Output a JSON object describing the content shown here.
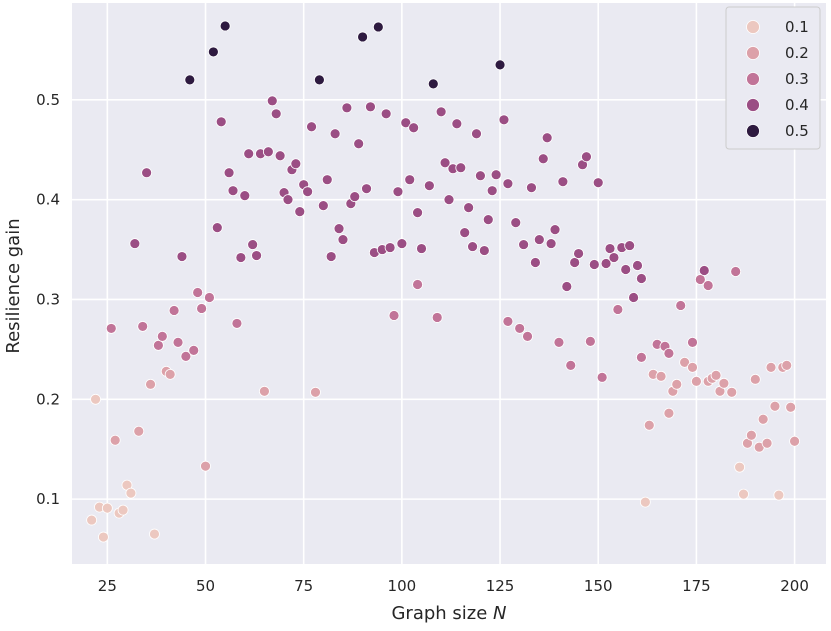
{
  "chart_data": {
    "type": "scatter",
    "xlabel": "Graph size",
    "xlabel_var": "N",
    "ylabel": "Resilience gain",
    "xlim": [
      16,
      208
    ],
    "ylim": [
      0.035,
      0.597
    ],
    "xticks": [
      25,
      50,
      75,
      100,
      125,
      150,
      175,
      200
    ],
    "yticks": [
      0.1,
      0.2,
      0.3,
      0.4,
      0.5
    ],
    "grid": true,
    "legend_position": "top-right",
    "background": "#eaeaf2",
    "series": [
      {
        "name": "0.1",
        "color": "#ecc8c0",
        "points": [
          [
            21,
            0.079
          ],
          [
            22,
            0.2
          ],
          [
            23,
            0.092
          ],
          [
            24,
            0.062
          ],
          [
            25,
            0.091
          ],
          [
            28,
            0.086
          ],
          [
            29,
            0.089
          ],
          [
            30,
            0.114
          ],
          [
            31,
            0.106
          ],
          [
            37,
            0.065
          ],
          [
            162,
            0.097
          ],
          [
            186,
            0.132
          ],
          [
            187,
            0.105
          ],
          [
            196,
            0.104
          ]
        ]
      },
      {
        "name": "0.2",
        "color": "#dca1a9",
        "points": [
          [
            27,
            0.159
          ],
          [
            33,
            0.168
          ],
          [
            36,
            0.215
          ],
          [
            40,
            0.228
          ],
          [
            41,
            0.225
          ],
          [
            50,
            0.133
          ],
          [
            65,
            0.208
          ],
          [
            78,
            0.207
          ],
          [
            163,
            0.174
          ],
          [
            164,
            0.225
          ],
          [
            166,
            0.223
          ],
          [
            168,
            0.186
          ],
          [
            169,
            0.208
          ],
          [
            170,
            0.215
          ],
          [
            172,
            0.237
          ],
          [
            174,
            0.232
          ],
          [
            175,
            0.218
          ],
          [
            178,
            0.218
          ],
          [
            179,
            0.221
          ],
          [
            180,
            0.224
          ],
          [
            181,
            0.208
          ],
          [
            182,
            0.216
          ],
          [
            184,
            0.207
          ],
          [
            188,
            0.156
          ],
          [
            189,
            0.164
          ],
          [
            190,
            0.22
          ],
          [
            191,
            0.152
          ],
          [
            192,
            0.18
          ],
          [
            193,
            0.156
          ],
          [
            194,
            0.232
          ],
          [
            195,
            0.193
          ],
          [
            197,
            0.232
          ],
          [
            198,
            0.234
          ],
          [
            199,
            0.192
          ],
          [
            200,
            0.158
          ]
        ]
      },
      {
        "name": "0.3",
        "color": "#c17498",
        "points": [
          [
            26,
            0.271
          ],
          [
            34,
            0.273
          ],
          [
            38,
            0.254
          ],
          [
            39,
            0.263
          ],
          [
            42,
            0.289
          ],
          [
            43,
            0.257
          ],
          [
            45,
            0.243
          ],
          [
            47,
            0.249
          ],
          [
            48,
            0.307
          ],
          [
            49,
            0.291
          ],
          [
            51,
            0.302
          ],
          [
            58,
            0.276
          ],
          [
            98,
            0.284
          ],
          [
            104,
            0.315
          ],
          [
            109,
            0.282
          ],
          [
            127,
            0.278
          ],
          [
            130,
            0.271
          ],
          [
            132,
            0.263
          ],
          [
            140,
            0.257
          ],
          [
            143,
            0.234
          ],
          [
            148,
            0.258
          ],
          [
            151,
            0.222
          ],
          [
            161,
            0.242
          ],
          [
            165,
            0.255
          ],
          [
            167,
            0.253
          ],
          [
            168,
            0.246
          ],
          [
            171,
            0.294
          ],
          [
            174,
            0.257
          ],
          [
            176,
            0.32
          ],
          [
            178,
            0.314
          ],
          [
            185,
            0.328
          ],
          [
            155,
            0.29
          ]
        ]
      },
      {
        "name": "0.4",
        "color": "#9b4e84",
        "points": [
          [
            32,
            0.356
          ],
          [
            35,
            0.427
          ],
          [
            44,
            0.343
          ],
          [
            53,
            0.372
          ],
          [
            54,
            0.478
          ],
          [
            56,
            0.427
          ],
          [
            57,
            0.409
          ],
          [
            59,
            0.342
          ],
          [
            60,
            0.404
          ],
          [
            61,
            0.446
          ],
          [
            62,
            0.355
          ],
          [
            63,
            0.344
          ],
          [
            64,
            0.446
          ],
          [
            66,
            0.448
          ],
          [
            67,
            0.499
          ],
          [
            68,
            0.486
          ],
          [
            69,
            0.444
          ],
          [
            70,
            0.407
          ],
          [
            71,
            0.4
          ],
          [
            72,
            0.43
          ],
          [
            73,
            0.436
          ],
          [
            74,
            0.388
          ],
          [
            75,
            0.415
          ],
          [
            76,
            0.408
          ],
          [
            77,
            0.473
          ],
          [
            80,
            0.394
          ],
          [
            81,
            0.42
          ],
          [
            82,
            0.343
          ],
          [
            83,
            0.466
          ],
          [
            84,
            0.371
          ],
          [
            85,
            0.36
          ],
          [
            86,
            0.492
          ],
          [
            87,
            0.396
          ],
          [
            88,
            0.403
          ],
          [
            89,
            0.456
          ],
          [
            91,
            0.411
          ],
          [
            92,
            0.493
          ],
          [
            93,
            0.347
          ],
          [
            95,
            0.35
          ],
          [
            96,
            0.486
          ],
          [
            97,
            0.352
          ],
          [
            99,
            0.408
          ],
          [
            100,
            0.356
          ],
          [
            101,
            0.477
          ],
          [
            102,
            0.42
          ],
          [
            103,
            0.472
          ],
          [
            104,
            0.387
          ],
          [
            105,
            0.351
          ],
          [
            107,
            0.414
          ],
          [
            110,
            0.488
          ],
          [
            111,
            0.437
          ],
          [
            112,
            0.4
          ],
          [
            113,
            0.431
          ],
          [
            114,
            0.476
          ],
          [
            115,
            0.432
          ],
          [
            116,
            0.367
          ],
          [
            117,
            0.392
          ],
          [
            118,
            0.353
          ],
          [
            119,
            0.466
          ],
          [
            120,
            0.424
          ],
          [
            121,
            0.349
          ],
          [
            122,
            0.38
          ],
          [
            123,
            0.409
          ],
          [
            124,
            0.425
          ],
          [
            126,
            0.48
          ],
          [
            127,
            0.416
          ],
          [
            129,
            0.377
          ],
          [
            131,
            0.355
          ],
          [
            133,
            0.412
          ],
          [
            134,
            0.337
          ],
          [
            135,
            0.36
          ],
          [
            136,
            0.441
          ],
          [
            137,
            0.462
          ],
          [
            138,
            0.356
          ],
          [
            139,
            0.37
          ],
          [
            141,
            0.418
          ],
          [
            142,
            0.313
          ],
          [
            144,
            0.337
          ],
          [
            145,
            0.346
          ],
          [
            146,
            0.435
          ],
          [
            147,
            0.443
          ],
          [
            149,
            0.335
          ],
          [
            150,
            0.417
          ],
          [
            152,
            0.336
          ],
          [
            153,
            0.351
          ],
          [
            154,
            0.342
          ],
          [
            156,
            0.352
          ],
          [
            157,
            0.33
          ],
          [
            158,
            0.354
          ],
          [
            159,
            0.302
          ],
          [
            160,
            0.334
          ],
          [
            161,
            0.321
          ],
          [
            177,
            0.329
          ]
        ]
      },
      {
        "name": "0.5",
        "color": "#2e1a40",
        "points": [
          [
            46,
            0.52
          ],
          [
            52,
            0.548
          ],
          [
            55,
            0.574
          ],
          [
            79,
            0.52
          ],
          [
            90,
            0.563
          ],
          [
            94,
            0.573
          ],
          [
            108,
            0.516
          ],
          [
            125,
            0.535
          ]
        ]
      }
    ]
  }
}
